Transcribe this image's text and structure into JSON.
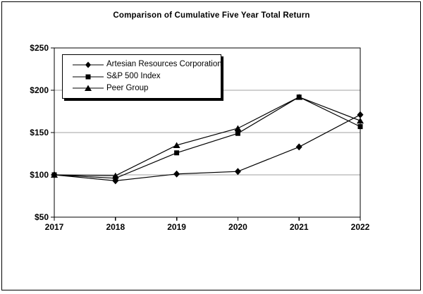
{
  "chart_data": {
    "type": "line",
    "title": "Comparison of Cumulative Five Year Total Return",
    "categories": [
      "2017",
      "2018",
      "2019",
      "2020",
      "2021",
      "2022"
    ],
    "series": [
      {
        "name": "Artesian Resources Corporation",
        "marker": "diamond",
        "color": "#000000",
        "values": [
          100,
          93,
          101,
          104,
          133,
          171
        ]
      },
      {
        "name": "S&P 500 Index",
        "marker": "square",
        "color": "#000000",
        "values": [
          100,
          96,
          126,
          149,
          192,
          157
        ]
      },
      {
        "name": "Peer Group",
        "marker": "triangle",
        "color": "#000000",
        "values": [
          100,
          99,
          135,
          155,
          192,
          164
        ]
      }
    ],
    "xlabel": "",
    "ylabel": "",
    "ylim": [
      50,
      250
    ],
    "y_ticks": [
      {
        "label": "$250",
        "value": 250
      },
      {
        "label": "$200",
        "value": 200
      },
      {
        "label": "$150",
        "value": 150
      },
      {
        "label": "$100",
        "value": 100
      },
      {
        "label": "$50",
        "value": 50
      }
    ],
    "grid": true,
    "legend_position": "top-left-inside",
    "colors": {
      "series": "#000000",
      "grid": "#a0a0a0",
      "axis": "#000000",
      "background": "#ffffff"
    }
  }
}
